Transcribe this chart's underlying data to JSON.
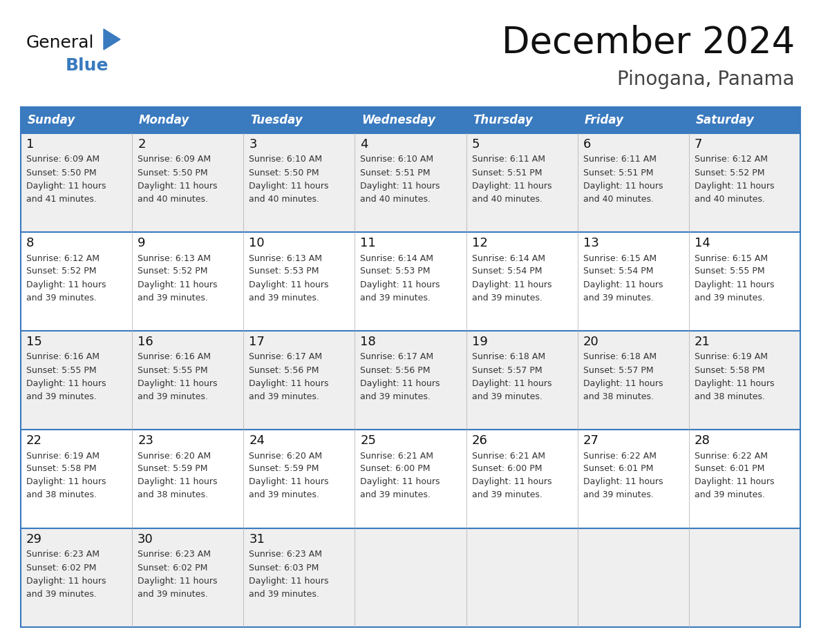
{
  "title": "December 2024",
  "subtitle": "Pinogana, Panama",
  "header_color": "#3a7abf",
  "header_text_color": "#ffffff",
  "row_bg_colors": [
    "#efefef",
    "#ffffff",
    "#efefef",
    "#ffffff",
    "#efefef"
  ],
  "grid_line_color": "#3a7abf",
  "day_headers": [
    "Sunday",
    "Monday",
    "Tuesday",
    "Wednesday",
    "Thursday",
    "Friday",
    "Saturday"
  ],
  "weeks": [
    [
      {
        "day": 1,
        "sunrise": "6:09 AM",
        "sunset": "5:50 PM",
        "daylight": "11 hours and 41 minutes."
      },
      {
        "day": 2,
        "sunrise": "6:09 AM",
        "sunset": "5:50 PM",
        "daylight": "11 hours and 40 minutes."
      },
      {
        "day": 3,
        "sunrise": "6:10 AM",
        "sunset": "5:50 PM",
        "daylight": "11 hours and 40 minutes."
      },
      {
        "day": 4,
        "sunrise": "6:10 AM",
        "sunset": "5:51 PM",
        "daylight": "11 hours and 40 minutes."
      },
      {
        "day": 5,
        "sunrise": "6:11 AM",
        "sunset": "5:51 PM",
        "daylight": "11 hours and 40 minutes."
      },
      {
        "day": 6,
        "sunrise": "6:11 AM",
        "sunset": "5:51 PM",
        "daylight": "11 hours and 40 minutes."
      },
      {
        "day": 7,
        "sunrise": "6:12 AM",
        "sunset": "5:52 PM",
        "daylight": "11 hours and 40 minutes."
      }
    ],
    [
      {
        "day": 8,
        "sunrise": "6:12 AM",
        "sunset": "5:52 PM",
        "daylight": "11 hours and 39 minutes."
      },
      {
        "day": 9,
        "sunrise": "6:13 AM",
        "sunset": "5:52 PM",
        "daylight": "11 hours and 39 minutes."
      },
      {
        "day": 10,
        "sunrise": "6:13 AM",
        "sunset": "5:53 PM",
        "daylight": "11 hours and 39 minutes."
      },
      {
        "day": 11,
        "sunrise": "6:14 AM",
        "sunset": "5:53 PM",
        "daylight": "11 hours and 39 minutes."
      },
      {
        "day": 12,
        "sunrise": "6:14 AM",
        "sunset": "5:54 PM",
        "daylight": "11 hours and 39 minutes."
      },
      {
        "day": 13,
        "sunrise": "6:15 AM",
        "sunset": "5:54 PM",
        "daylight": "11 hours and 39 minutes."
      },
      {
        "day": 14,
        "sunrise": "6:15 AM",
        "sunset": "5:55 PM",
        "daylight": "11 hours and 39 minutes."
      }
    ],
    [
      {
        "day": 15,
        "sunrise": "6:16 AM",
        "sunset": "5:55 PM",
        "daylight": "11 hours and 39 minutes."
      },
      {
        "day": 16,
        "sunrise": "6:16 AM",
        "sunset": "5:55 PM",
        "daylight": "11 hours and 39 minutes."
      },
      {
        "day": 17,
        "sunrise": "6:17 AM",
        "sunset": "5:56 PM",
        "daylight": "11 hours and 39 minutes."
      },
      {
        "day": 18,
        "sunrise": "6:17 AM",
        "sunset": "5:56 PM",
        "daylight": "11 hours and 39 minutes."
      },
      {
        "day": 19,
        "sunrise": "6:18 AM",
        "sunset": "5:57 PM",
        "daylight": "11 hours and 39 minutes."
      },
      {
        "day": 20,
        "sunrise": "6:18 AM",
        "sunset": "5:57 PM",
        "daylight": "11 hours and 38 minutes."
      },
      {
        "day": 21,
        "sunrise": "6:19 AM",
        "sunset": "5:58 PM",
        "daylight": "11 hours and 38 minutes."
      }
    ],
    [
      {
        "day": 22,
        "sunrise": "6:19 AM",
        "sunset": "5:58 PM",
        "daylight": "11 hours and 38 minutes."
      },
      {
        "day": 23,
        "sunrise": "6:20 AM",
        "sunset": "5:59 PM",
        "daylight": "11 hours and 38 minutes."
      },
      {
        "day": 24,
        "sunrise": "6:20 AM",
        "sunset": "5:59 PM",
        "daylight": "11 hours and 39 minutes."
      },
      {
        "day": 25,
        "sunrise": "6:21 AM",
        "sunset": "6:00 PM",
        "daylight": "11 hours and 39 minutes."
      },
      {
        "day": 26,
        "sunrise": "6:21 AM",
        "sunset": "6:00 PM",
        "daylight": "11 hours and 39 minutes."
      },
      {
        "day": 27,
        "sunrise": "6:22 AM",
        "sunset": "6:01 PM",
        "daylight": "11 hours and 39 minutes."
      },
      {
        "day": 28,
        "sunrise": "6:22 AM",
        "sunset": "6:01 PM",
        "daylight": "11 hours and 39 minutes."
      }
    ],
    [
      {
        "day": 29,
        "sunrise": "6:23 AM",
        "sunset": "6:02 PM",
        "daylight": "11 hours and 39 minutes."
      },
      {
        "day": 30,
        "sunrise": "6:23 AM",
        "sunset": "6:02 PM",
        "daylight": "11 hours and 39 minutes."
      },
      {
        "day": 31,
        "sunrise": "6:23 AM",
        "sunset": "6:03 PM",
        "daylight": "11 hours and 39 minutes."
      },
      null,
      null,
      null,
      null
    ]
  ]
}
